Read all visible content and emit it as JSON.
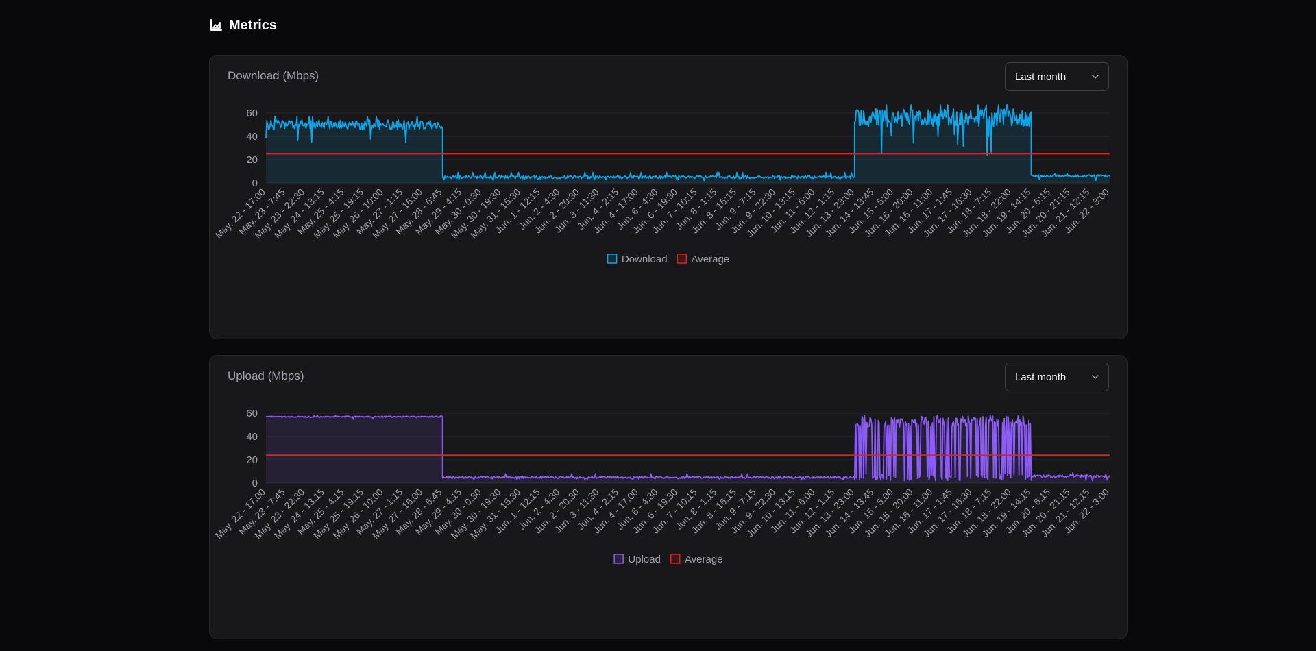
{
  "header": {
    "title": "Metrics",
    "icon": "area-chart-icon"
  },
  "select_options": [
    "Last month"
  ],
  "colors": {
    "download": "#0ea5e9",
    "upload": "#8b5cf6",
    "average": "#ef1b1b",
    "grid": "#2a2a2e",
    "axis_text": "#a1a1aa"
  },
  "x_tick_labels": [
    "May. 22 - 17:00",
    "May. 23 - 7:45",
    "May. 23 - 22:30",
    "May. 24 - 13:15",
    "May. 25 - 4:15",
    "May. 25 - 19:15",
    "May. 26 - 10:00",
    "May. 27 - 1:15",
    "May. 27 - 16:00",
    "May. 28 - 6:45",
    "May. 29 - 4:15",
    "May. 30 - 0:30",
    "May. 30 - 19:30",
    "May. 31 - 15:30",
    "Jun. 1 - 12:15",
    "Jun. 2 - 4:30",
    "Jun. 2 - 20:30",
    "Jun. 3 - 11:30",
    "Jun. 4 - 2:15",
    "Jun. 4 - 17:00",
    "Jun. 6 - 4:30",
    "Jun. 6 - 19:30",
    "Jun. 7 - 10:15",
    "Jun. 8 - 1:15",
    "Jun. 8 - 16:15",
    "Jun. 9 - 7:15",
    "Jun. 9 - 22:30",
    "Jun. 10 - 13:15",
    "Jun. 11 - 6:00",
    "Jun. 12 - 1:15",
    "Jun. 13 - 23:00",
    "Jun. 14 - 13:45",
    "Jun. 15 - 5:00",
    "Jun. 15 - 20:00",
    "Jun. 16 - 11:00",
    "Jun. 17 - 1:45",
    "Jun. 17 - 16:30",
    "Jun. 18 - 7:15",
    "Jun. 18 - 22:00",
    "Jun. 19 - 14:15",
    "Jun. 20 - 6:15",
    "Jun. 20 - 21:15",
    "Jun. 21 - 12:15",
    "Jun. 22 - 3:00"
  ],
  "chart_data": [
    {
      "id": "download",
      "type": "area",
      "title": "Download (Mbps)",
      "selected_range": "Last month",
      "ylim": [
        0,
        60
      ],
      "yticks": [
        0,
        20,
        40,
        60
      ],
      "grid": true,
      "legend_position": "bottom-center",
      "series": [
        {
          "name": "Download",
          "segments": [
            {
              "from": "May. 22 - 17:00",
              "to": "May. 28 - 6:45",
              "typical": 50,
              "range": [
                33,
                57
              ]
            },
            {
              "from": "May. 28 - 6:45",
              "to": "Jun. 13 - 23:00",
              "typical": 5,
              "range": [
                2,
                9
              ]
            },
            {
              "from": "Jun. 13 - 23:00",
              "to": "Jun. 19 - 14:15",
              "typical": 56,
              "range": [
                23,
                67
              ]
            },
            {
              "from": "Jun. 19 - 14:15",
              "to": "Jun. 22 - 3:00",
              "typical": 6,
              "range": [
                2,
                8
              ]
            }
          ]
        },
        {
          "name": "Average",
          "value": 25
        }
      ]
    },
    {
      "id": "upload",
      "type": "area",
      "title": "Upload (Mbps)",
      "selected_range": "Last month",
      "ylim": [
        0,
        60
      ],
      "yticks": [
        0,
        20,
        40,
        60
      ],
      "grid": true,
      "legend_position": "bottom-center",
      "series": [
        {
          "name": "Upload",
          "segments": [
            {
              "from": "May. 22 - 17:00",
              "to": "May. 28 - 6:45",
              "typical": 57,
              "range": [
                55,
                58
              ]
            },
            {
              "from": "May. 28 - 6:45",
              "to": "Jun. 13 - 23:00",
              "typical": 5,
              "range": [
                3,
                8
              ]
            },
            {
              "from": "Jun. 13 - 23:00",
              "to": "Jun. 19 - 14:15",
              "typical": 50,
              "range": [
                2,
                58
              ]
            },
            {
              "from": "Jun. 19 - 14:15",
              "to": "Jun. 22 - 3:00",
              "typical": 6,
              "range": [
                2,
                9
              ]
            }
          ]
        },
        {
          "name": "Average",
          "value": 24
        }
      ]
    }
  ]
}
